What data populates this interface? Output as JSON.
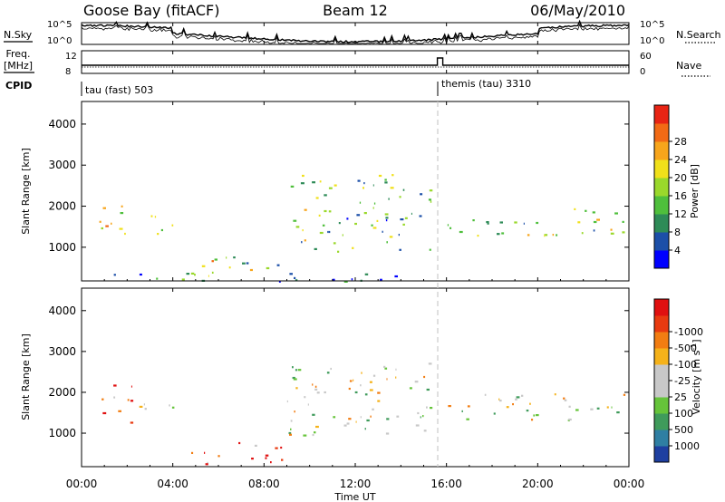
{
  "header": {
    "station": "Goose Bay (fitACF)",
    "beam": "Beam 12",
    "date": "06/May/2010"
  },
  "strip_labels": {
    "nsky": "N.Sky",
    "nsearch": "N.Search",
    "freq_line1": "Freq.",
    "freq_line2": "[MHz]",
    "nave": "Nave",
    "cpid": "CPID",
    "noise_top_left": "10^5",
    "noise_bottom_left": "10^0",
    "noise_top_right": "10^5",
    "noise_bottom_right": "10^0",
    "freq_top": "12",
    "freq_bottom": "8",
    "nave_top": "60",
    "nave_bottom": "0"
  },
  "cpid": [
    {
      "start_hour": 0.0,
      "label": "tau (fast) 503"
    },
    {
      "start_hour": 15.6,
      "label": "themis (tau) 3310"
    }
  ],
  "x_axis": {
    "label": "Time UT",
    "ticks": [
      "00:00",
      "04:00",
      "08:00",
      "12:00",
      "16:00",
      "20:00",
      "00:00"
    ],
    "tick_hours": [
      0,
      4,
      8,
      12,
      16,
      20,
      24
    ],
    "range_hours": [
      0,
      24
    ]
  },
  "chart_data": [
    {
      "type": "heatmap",
      "name": "power-panel",
      "ylabel": "Slant Range [km]",
      "yticks": [
        1000,
        2000,
        3000,
        4000
      ],
      "ylim": [
        180,
        4550
      ],
      "xlim": [
        0,
        24
      ],
      "colorbar": {
        "label": "Power [dB]",
        "ticks": [
          "4",
          "8",
          "12",
          "16",
          "20",
          "24",
          "28"
        ],
        "colors": [
          "#0000ff",
          "#1c4fa8",
          "#2e8b57",
          "#4fbf3c",
          "#9ad82b",
          "#f0e01a",
          "#f7a51b",
          "#f26a15",
          "#e82414"
        ]
      },
      "regions": [
        {
          "t0": 0.6,
          "t1": 2.2,
          "r0": 1150,
          "r1": 2200,
          "level": 0.55
        },
        {
          "t0": 2.3,
          "t1": 4.0,
          "r0": 1300,
          "r1": 1850,
          "level": 0.45
        },
        {
          "t0": 4.4,
          "t1": 9.0,
          "r0": 250,
          "r1": 800,
          "level": 0.5
        },
        {
          "t0": 9.0,
          "t1": 15.4,
          "r0": 900,
          "r1": 2800,
          "level": 0.4
        },
        {
          "t0": 16.0,
          "t1": 24.0,
          "r0": 1300,
          "r1": 2000,
          "level": 0.45
        },
        {
          "t0": 0.3,
          "t1": 15.4,
          "r0": 180,
          "r1": 400,
          "level": 0.2
        }
      ]
    },
    {
      "type": "heatmap",
      "name": "velocity-panel",
      "ylabel": "Slant Range [km]",
      "yticks": [
        1000,
        2000,
        3000,
        4000
      ],
      "ylim": [
        180,
        4550
      ],
      "xlim": [
        0,
        24
      ],
      "colorbar": {
        "label": "Velocity [m s-1]",
        "ticks": [
          "1000",
          "500",
          "100",
          "25",
          "-25",
          "-100",
          "-500",
          "-1000"
        ],
        "colors": [
          "#1e3fa0",
          "#2f7fa3",
          "#3f9b5b",
          "#66c43a",
          "#c8c8c8",
          "#c8c8c8",
          "#f5b21a",
          "#f27d12",
          "#e83a10",
          "#e01010"
        ]
      },
      "regions": [
        {
          "t0": 0.6,
          "t1": 2.2,
          "r0": 1150,
          "r1": 2200,
          "level": 0.8
        },
        {
          "t0": 2.3,
          "t1": 4.0,
          "r0": 1300,
          "r1": 1850,
          "level": 0.4
        },
        {
          "t0": 4.4,
          "t1": 9.0,
          "r0": 250,
          "r1": 800,
          "level": 0.8
        },
        {
          "t0": 9.0,
          "t1": 15.4,
          "r0": 900,
          "r1": 2800,
          "level": 0.5
        },
        {
          "t0": 16.0,
          "t1": 24.0,
          "r0": 1300,
          "r1": 2000,
          "level": 0.5
        }
      ]
    }
  ]
}
